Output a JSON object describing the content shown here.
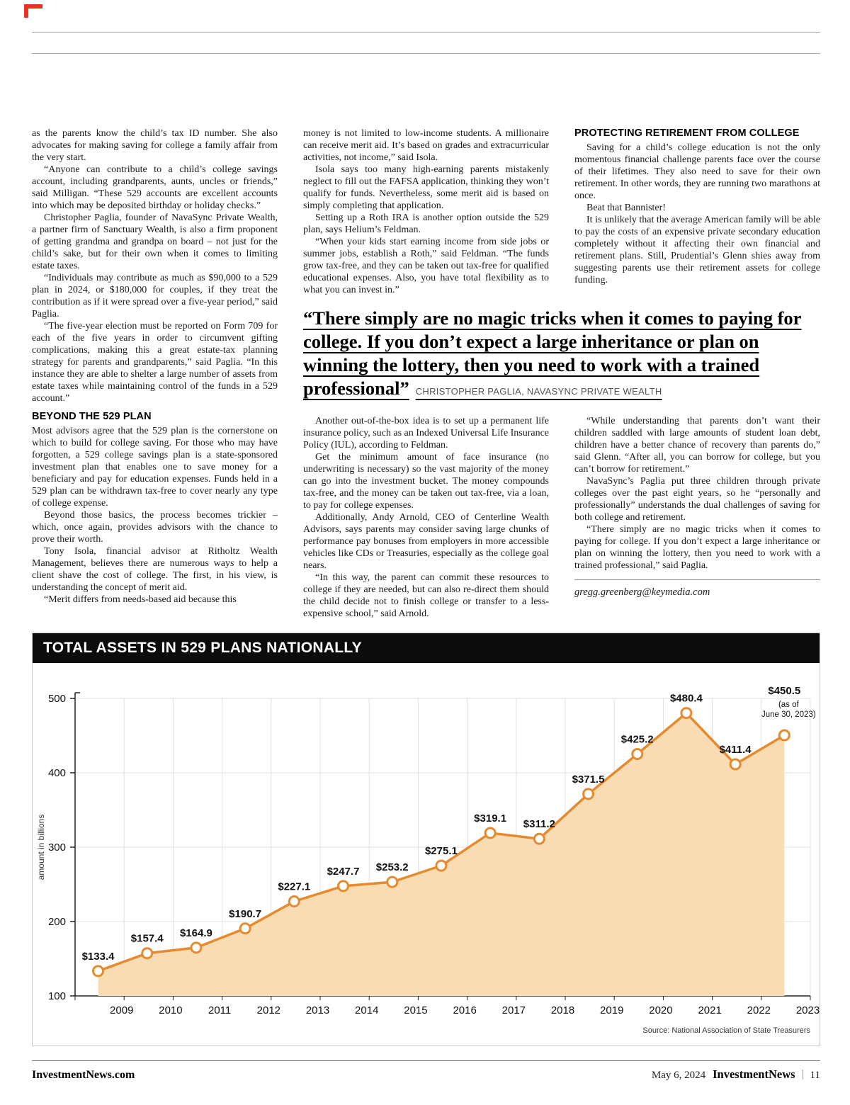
{
  "article": {
    "col1": {
      "paras_before": [
        {
          "t": "as the parents know the child’s tax ID number. She also advocates for making saving for college a family affair from the very start.",
          "i": false
        },
        {
          "t": "“Anyone can contribute to a child’s college savings account, including grandparents, aunts, uncles or friends,” said Milligan. “These 529 accounts are excellent accounts into which may be deposited birthday or holiday checks.”"
        },
        {
          "t": "Christopher Paglia, founder of NavaSync Private Wealth, a partner firm of Sanctuary Wealth, is also a firm proponent of getting grandma and grandpa on board – not just for the child’s sake, but for their own when it comes to limiting estate taxes."
        },
        {
          "t": "“Individuals may contribute as much as $90,000 to a 529 plan in 2024, or $180,000 for couples, if they treat the contribution as if it were spread over a five-year period,” said Paglia."
        },
        {
          "t": "“The five-year election must be reported on Form 709 for each of the five years in order to circumvent gifting complications, making this a great estate-tax planning strategy for parents and grandparents,” said Paglia. “In this instance they are able to shelter a large number of assets from estate taxes while maintaining control of the funds in a 529 account.”"
        }
      ],
      "heading": "BEYOND THE 529 PLAN",
      "paras_after": [
        {
          "t": "Most advisors agree that the 529 plan is the cornerstone on which to build for college saving. For those who may have forgotten, a 529 college savings plan is a state-sponsored investment plan that enables one to save money for a beneficiary and pay for education expenses. Funds held in a 529 plan can be withdrawn tax-free to cover nearly any type of college expense.",
          "i": false
        },
        {
          "t": "Beyond those basics, the process becomes trickier – which, once again, provides advisors with the chance to prove their worth."
        },
        {
          "t": "Tony Isola, financial advisor at Ritholtz Wealth Management, believes there are numerous ways to help a client shave the cost of college. The first, in his view, is understanding the concept of merit aid."
        },
        {
          "t": "“Merit differs from needs-based aid because this"
        }
      ]
    },
    "col2_top": {
      "paras": [
        {
          "t": "money is not limited to low-income students. A millionaire can receive merit aid. It’s based on grades and extracurricular activities, not income,” said Isola.",
          "i": false
        },
        {
          "t": "Isola says too many high-earning parents mistakenly neglect to fill out the FAFSA application, thinking they won’t qualify for funds. Nevertheless, some merit aid is based on simply completing that application."
        },
        {
          "t": "Setting up a Roth IRA is another option outside the 529 plan, says Helium’s Feldman."
        },
        {
          "t": "“When your kids start earning income from side jobs or summer jobs, establish a Roth,” said Feldman. “The funds grow tax-free, and they can be taken out tax-free for qualified educational expenses. Also, you have total flexibility as to what you can invest in.”"
        }
      ]
    },
    "col3_top": {
      "heading": "PROTECTING RETIREMENT FROM COLLEGE",
      "paras": [
        {
          "t": "Saving for a child’s college education is not the only momentous financial challenge parents face over the course of their lifetimes. They also need to save for their own retirement. In other words, they are running two marathons at once."
        },
        {
          "t": "Beat that Bannister!"
        },
        {
          "t": "It is unlikely that the average American family will be able to pay the costs of an expensive private secondary education completely without it affecting their own financial and retirement plans. Still, Prudential’s Glenn shies away from suggesting parents use their retirement assets for college funding."
        }
      ]
    },
    "pullquote": {
      "text": "“There simply are no magic tricks when it comes to paying for college. If you don’t expect a large inheritance or plan on winning the lottery, then you need to work with a trained professional”",
      "attribution": "CHRISTOPHER PAGLIA, NAVASYNC PRIVATE WEALTH"
    },
    "col2_bottom": {
      "paras": [
        {
          "t": "Another out-of-the-box idea is to set up a permanent life insurance policy, such as an Indexed Universal Life Insurance Policy (IUL), according to Feldman."
        },
        {
          "t": "Get the minimum amount of face insurance (no underwriting is necessary) so the vast majority of the money can go into the investment bucket. The money compounds tax-free, and the money can be taken out tax-free, via a loan, to pay for college expenses."
        },
        {
          "t": "Additionally, Andy Arnold, CEO of Centerline Wealth Advisors, says parents may consider saving large chunks of performance pay bonuses from employers in more accessible vehicles like CDs or Treasuries, especially as the college goal nears."
        },
        {
          "t": "“In this way, the parent can commit these resources to college if they are needed, but can also re-direct them should the child decide not to finish college or transfer to a less-expensive school,” said Arnold."
        }
      ]
    },
    "col3_bottom": {
      "paras": [
        {
          "t": "“While understanding that parents don’t want their children saddled with large amounts of student loan debt, children have a better chance of recovery than parents do,” said Glenn. “After all, you can borrow for college, but you can’t borrow for retirement.”"
        },
        {
          "t": "NavaSync’s Paglia put three children through private colleges over the past eight years, so he “personally and professionally” understands the dual challenges of saving for both college and retirement."
        },
        {
          "t": "“There simply are no magic tricks when it comes to paying for college. If you don’t expect a large inheritance or plan on winning the lottery, then you need to work with a trained professional,” said Paglia."
        }
      ],
      "email": "gregg.greenberg@keymedia.com"
    }
  },
  "chart_data": {
    "type": "line",
    "title": "TOTAL ASSETS IN 529 PLANS NATIONALLY",
    "ylabel": "amount in billions",
    "xlabel": "",
    "ylim": [
      100,
      500
    ],
    "yticks": [
      100,
      200,
      300,
      400,
      500
    ],
    "grid": true,
    "categories": [
      "2009",
      "2010",
      "2011",
      "2012",
      "2013",
      "2014",
      "2015",
      "2016",
      "2017",
      "2018",
      "2019",
      "2020",
      "2021",
      "2022",
      "2023"
    ],
    "values": [
      133.4,
      157.4,
      164.9,
      190.7,
      227.1,
      247.7,
      253.2,
      275.1,
      319.1,
      311.2,
      371.5,
      425.2,
      480.4,
      411.4,
      450.5
    ],
    "value_labels": [
      "$133.4",
      "$157.4",
      "$164.9",
      "$190.7",
      "$227.1",
      "$247.7",
      "$253.2",
      "$275.1",
      "$319.1",
      "$311.2",
      "$371.5",
      "$425.2",
      "$480.4",
      "$411.4",
      "$450.5"
    ],
    "last_point_note": [
      "(as of",
      "June 30, 2023)"
    ],
    "source": "Source: National Association of State Treasurers",
    "colors": {
      "line": "#E68A2E",
      "area": "#FADCB4",
      "grid": "#E0E0E0",
      "axis": "#222222"
    }
  },
  "footer": {
    "site": "InvestmentNews.com",
    "date": "May 6, 2024",
    "brand": "InvestmentNews",
    "page": "11"
  }
}
